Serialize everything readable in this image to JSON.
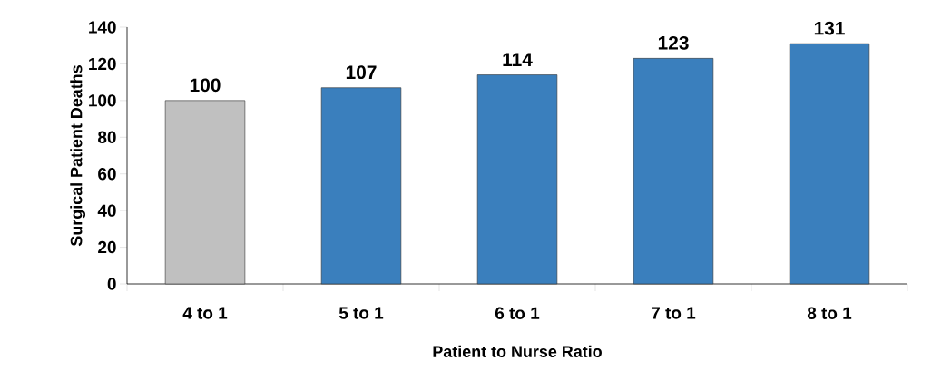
{
  "chart_data": {
    "type": "bar",
    "xlabel": "Patient to Nurse Ratio",
    "ylabel": "Surgical Patient Deaths",
    "categories": [
      "4 to 1",
      "5 to 1",
      "6 to 1",
      "7 to 1",
      "8 to 1"
    ],
    "values": [
      100,
      107,
      114,
      123,
      131
    ],
    "colors": [
      "#c0c0c0",
      "#3a7fbd",
      "#3a7fbd",
      "#3a7fbd",
      "#3a7fbd"
    ],
    "ylim": [
      0,
      140
    ],
    "yticks": [
      0,
      20,
      40,
      60,
      80,
      100,
      120,
      140
    ],
    "data_labels": true
  }
}
